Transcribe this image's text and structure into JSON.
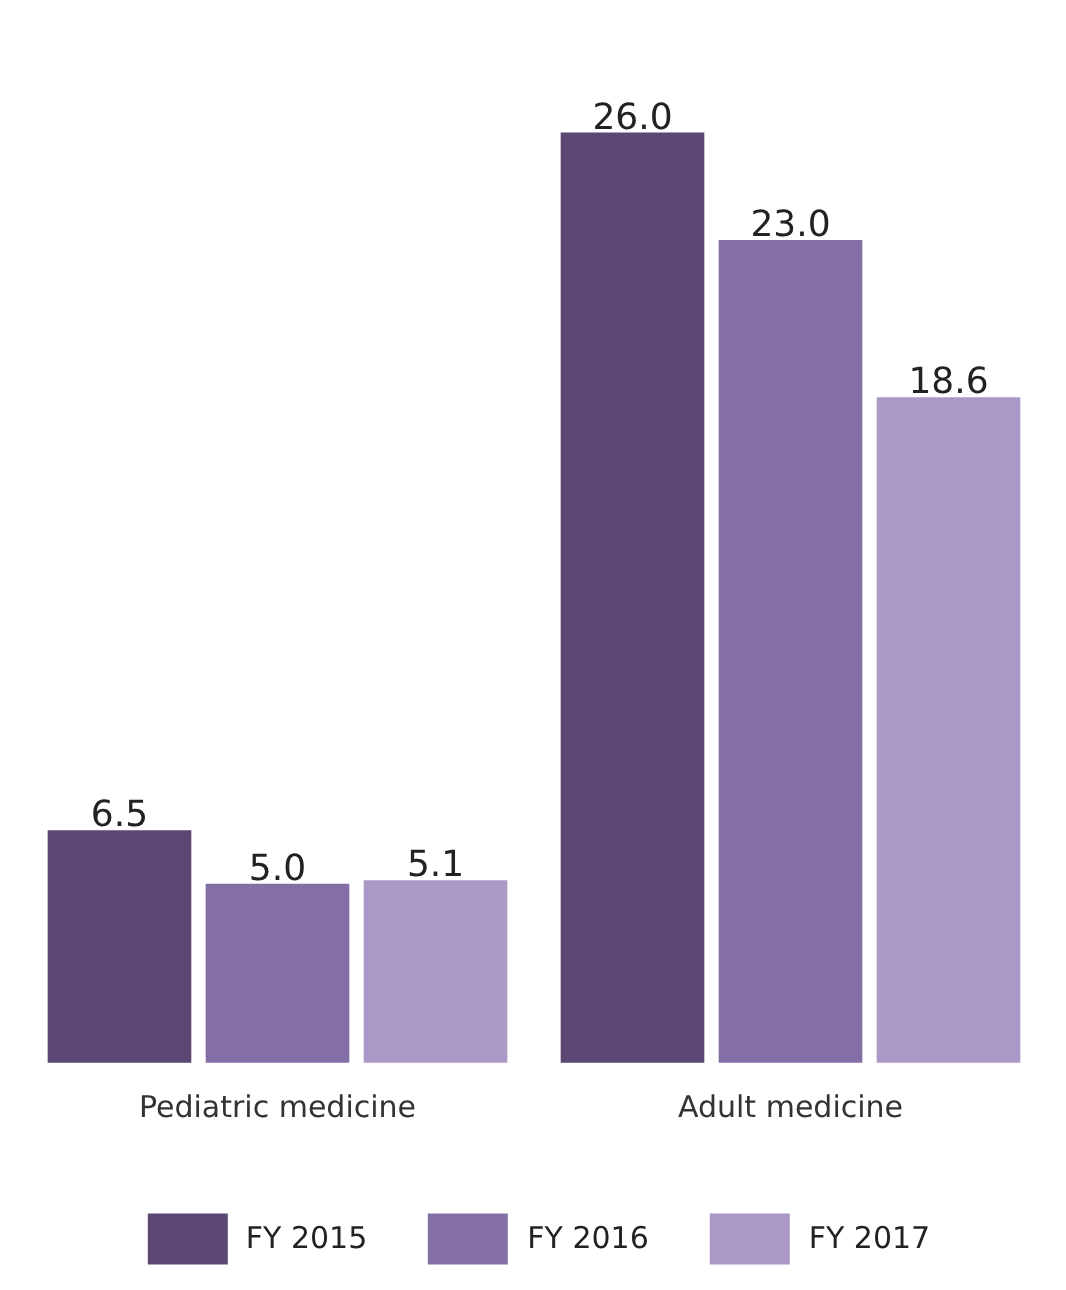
{
  "chart_data": {
    "type": "bar",
    "categories": [
      "Pediatric medicine",
      "Adult medicine"
    ],
    "series": [
      {
        "name": "FY 2015",
        "color": "#5b4674",
        "values": [
          6.5,
          26.0
        ],
        "value_labels": [
          "6.5",
          "26.0"
        ]
      },
      {
        "name": "FY 2016",
        "color": "#846ea6",
        "values": [
          5.0,
          23.0
        ],
        "value_labels": [
          "5.0",
          "23.0"
        ]
      },
      {
        "name": "FY 2017",
        "color": "#aa98c7",
        "values": [
          5.1,
          18.6
        ],
        "value_labels": [
          "5.1",
          "18.6"
        ]
      }
    ],
    "legend": "bottom",
    "grid": false
  }
}
